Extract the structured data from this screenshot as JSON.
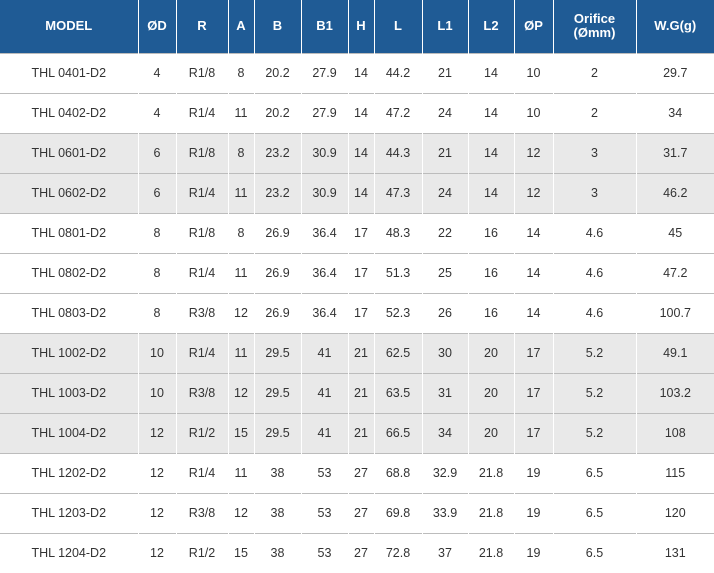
{
  "headers": [
    "MODEL",
    "ØD",
    "R",
    "A",
    "B",
    "B1",
    "H",
    "L",
    "L1",
    "L2",
    "ØP",
    "Orifice\n(Ømm)",
    "W.G(g)"
  ],
  "rows": [
    {
      "shaded": false,
      "cells": [
        "THL 0401-D2",
        "4",
        "R1/8",
        "8",
        "20.2",
        "27.9",
        "14",
        "44.2",
        "21",
        "14",
        "10",
        "2",
        "29.7"
      ]
    },
    {
      "shaded": false,
      "cells": [
        "THL 0402-D2",
        "4",
        "R1/4",
        "11",
        "20.2",
        "27.9",
        "14",
        "47.2",
        "24",
        "14",
        "10",
        "2",
        "34"
      ]
    },
    {
      "shaded": true,
      "cells": [
        "THL 0601-D2",
        "6",
        "R1/8",
        "8",
        "23.2",
        "30.9",
        "14",
        "44.3",
        "21",
        "14",
        "12",
        "3",
        "31.7"
      ]
    },
    {
      "shaded": true,
      "cells": [
        "THL 0602-D2",
        "6",
        "R1/4",
        "11",
        "23.2",
        "30.9",
        "14",
        "47.3",
        "24",
        "14",
        "12",
        "3",
        "46.2"
      ]
    },
    {
      "shaded": false,
      "cells": [
        "THL 0801-D2",
        "8",
        "R1/8",
        "8",
        "26.9",
        "36.4",
        "17",
        "48.3",
        "22",
        "16",
        "14",
        "4.6",
        "45"
      ]
    },
    {
      "shaded": false,
      "cells": [
        "THL 0802-D2",
        "8",
        "R1/4",
        "11",
        "26.9",
        "36.4",
        "17",
        "51.3",
        "25",
        "16",
        "14",
        "4.6",
        "47.2"
      ]
    },
    {
      "shaded": false,
      "cells": [
        "THL 0803-D2",
        "8",
        "R3/8",
        "12",
        "26.9",
        "36.4",
        "17",
        "52.3",
        "26",
        "16",
        "14",
        "4.6",
        "100.7"
      ]
    },
    {
      "shaded": true,
      "cells": [
        "THL 1002-D2",
        "10",
        "R1/4",
        "11",
        "29.5",
        "41",
        "21",
        "62.5",
        "30",
        "20",
        "17",
        "5.2",
        "49.1"
      ]
    },
    {
      "shaded": true,
      "cells": [
        "THL 1003-D2",
        "10",
        "R3/8",
        "12",
        "29.5",
        "41",
        "21",
        "63.5",
        "31",
        "20",
        "17",
        "5.2",
        "103.2"
      ]
    },
    {
      "shaded": true,
      "cells": [
        "THL 1004-D2",
        "12",
        "R1/2",
        "15",
        "29.5",
        "41",
        "21",
        "66.5",
        "34",
        "20",
        "17",
        "5.2",
        "108"
      ]
    },
    {
      "shaded": false,
      "cells": [
        "THL 1202-D2",
        "12",
        "R1/4",
        "11",
        "38",
        "53",
        "27",
        "68.8",
        "32.9",
        "21.8",
        "19",
        "6.5",
        "115"
      ]
    },
    {
      "shaded": false,
      "cells": [
        "THL 1203-D2",
        "12",
        "R3/8",
        "12",
        "38",
        "53",
        "27",
        "69.8",
        "33.9",
        "21.8",
        "19",
        "6.5",
        "120"
      ]
    },
    {
      "shaded": false,
      "cells": [
        "THL 1204-D2",
        "12",
        "R1/2",
        "15",
        "38",
        "53",
        "27",
        "72.8",
        "37",
        "21.8",
        "19",
        "6.5",
        "131"
      ]
    }
  ],
  "colors": {
    "header_bg": "#1f5b95",
    "header_text": "#ffffff",
    "shaded_row": "#e9e9e9",
    "row_divider": "#bcbcbc",
    "cell_text": "#333333"
  }
}
